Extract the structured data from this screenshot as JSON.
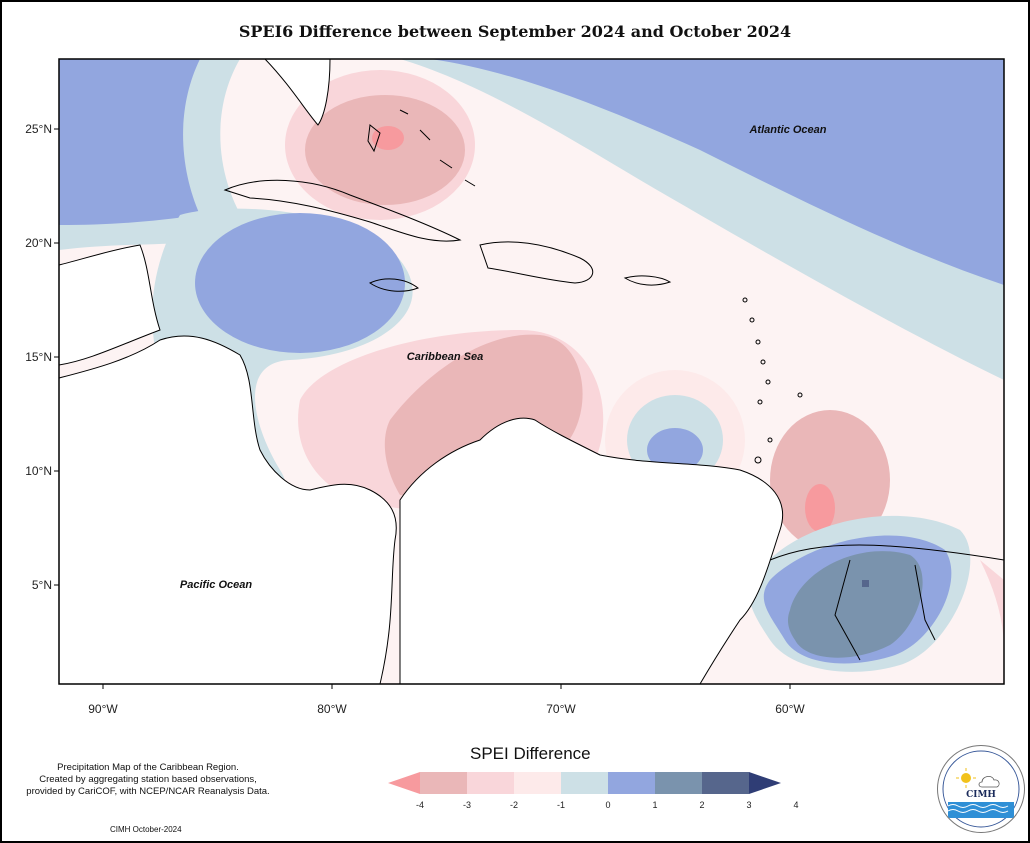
{
  "title": "SPEI6 Difference between September 2024 and October 2024",
  "map": {
    "lat_ticks": [
      "25°N",
      "20°N",
      "15°N",
      "10°N",
      "5°N"
    ],
    "lon_ticks": [
      "90°W",
      "80°W",
      "70°W",
      "60°W"
    ],
    "labels": {
      "atlantic": "Atlantic Ocean",
      "caribbean": "Caribbean Sea",
      "pacific": "Pacific Ocean"
    }
  },
  "legend": {
    "title": "SPEI Difference",
    "tick_labels": [
      "-4",
      "-3",
      "-2",
      "-1",
      "0",
      "1",
      "2",
      "3",
      "4"
    ],
    "colors": [
      "#f79a9e",
      "#eab7b8",
      "#f9d6da",
      "#fdeaea",
      "#cde0e6",
      "#92a6df",
      "#7a93ad",
      "#56668c",
      "#2f3d75"
    ]
  },
  "footnote": {
    "line1": "Precipitation Map of the Caribbean Region.",
    "line2": "Created by aggregating station based observations,",
    "line3": "provided by CariCOF, with NCEP/NCAR Reanalysis Data.",
    "credit": "CIMH October-2024"
  },
  "logo": {
    "text": "CIMH"
  }
}
